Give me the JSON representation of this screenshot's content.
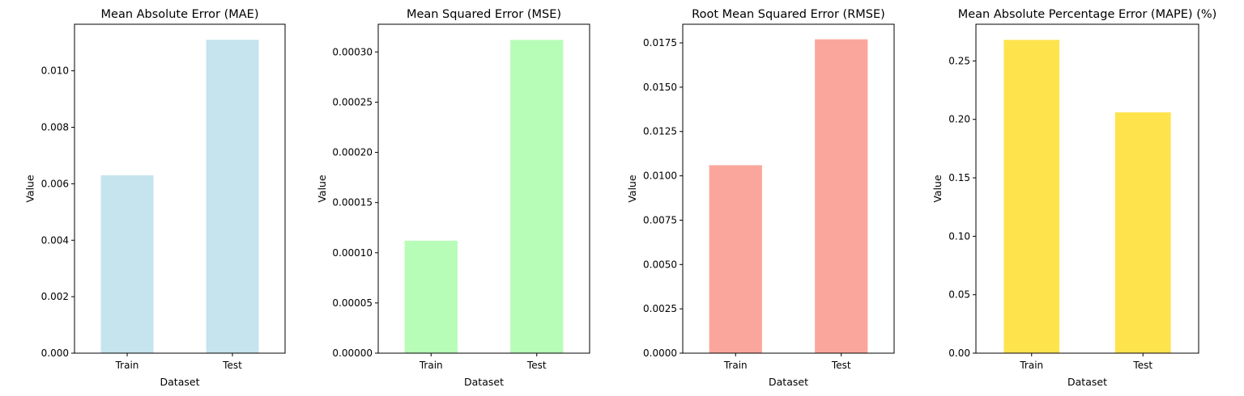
{
  "chart_data": [
    {
      "type": "bar",
      "title": "Mean Absolute Error (MAE)",
      "xlabel": "Dataset",
      "ylabel": "Value",
      "categories": [
        "Train",
        "Test"
      ],
      "values": [
        0.0063,
        0.0111
      ],
      "ylim": [
        0,
        0.01165
      ],
      "yticks": [
        0.0,
        0.002,
        0.004,
        0.006,
        0.008,
        0.01
      ],
      "ytick_labels": [
        "0.000",
        "0.002",
        "0.004",
        "0.006",
        "0.008",
        "0.010"
      ],
      "color": "#ADD8E6",
      "grid": false
    },
    {
      "type": "bar",
      "title": "Mean Squared Error (MSE)",
      "xlabel": "Dataset",
      "ylabel": "Value",
      "categories": [
        "Train",
        "Test"
      ],
      "values": [
        0.000112,
        0.000312
      ],
      "ylim": [
        0,
        0.0003276
      ],
      "yticks": [
        0.0,
        5e-05,
        0.0001,
        0.00015,
        0.0002,
        0.00025,
        0.0003
      ],
      "ytick_labels": [
        "0.00000",
        "0.00005",
        "0.00010",
        "0.00015",
        "0.00020",
        "0.00025",
        "0.00030"
      ],
      "color": "#98FB98",
      "grid": false
    },
    {
      "type": "bar",
      "title": "Root Mean Squared Error (RMSE)",
      "xlabel": "Dataset",
      "ylabel": "Value",
      "categories": [
        "Train",
        "Test"
      ],
      "values": [
        0.0106,
        0.0177
      ],
      "ylim": [
        0,
        0.01855
      ],
      "yticks": [
        0.0,
        0.0025,
        0.005,
        0.0075,
        0.01,
        0.0125,
        0.015,
        0.0175
      ],
      "ytick_labels": [
        "0.0000",
        "0.0025",
        "0.0050",
        "0.0075",
        "0.0100",
        "0.0125",
        "0.0150",
        "0.0175"
      ],
      "color": "#FA8072",
      "grid": false
    },
    {
      "type": "bar",
      "title": "Mean Absolute Percentage Error (MAPE) (%)",
      "xlabel": "Dataset",
      "ylabel": "Value",
      "categories": [
        "Train",
        "Test"
      ],
      "values": [
        0.268,
        0.206
      ],
      "ylim": [
        0,
        0.2814
      ],
      "yticks": [
        0.0,
        0.05,
        0.1,
        0.15,
        0.2,
        0.25
      ],
      "ytick_labels": [
        "0.00",
        "0.05",
        "0.10",
        "0.15",
        "0.20",
        "0.25"
      ],
      "color": "#FFD700",
      "grid": false
    }
  ]
}
